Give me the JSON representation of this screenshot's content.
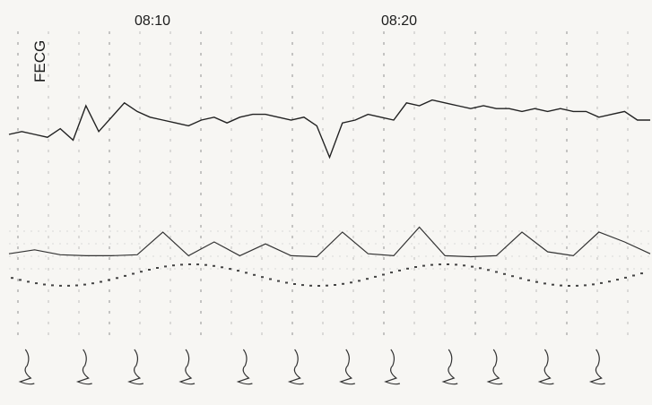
{
  "chart_data": {
    "type": "line",
    "label_side": "FECG",
    "time_labels": [
      "08:10",
      "08:20"
    ],
    "fhr_trace": {
      "x": [
        0,
        2,
        4,
        6,
        8,
        10,
        12,
        14,
        16,
        18,
        20,
        22,
        24,
        26,
        28,
        30,
        32,
        34,
        36,
        38,
        40,
        42,
        44,
        46,
        48,
        50,
        52,
        54,
        56,
        58,
        60,
        62,
        64,
        66,
        68,
        70,
        72,
        74,
        76,
        78,
        80,
        82,
        84,
        86,
        88,
        90,
        92,
        94,
        96,
        98,
        100
      ],
      "y": [
        140,
        141,
        140,
        139,
        142,
        138,
        150,
        141,
        146,
        151,
        148,
        146,
        145,
        144,
        143,
        145,
        146,
        144,
        146,
        147,
        147,
        146,
        145,
        146,
        143,
        132,
        144,
        145,
        147,
        146,
        145,
        151,
        150,
        152,
        151,
        150,
        149,
        150,
        149,
        149,
        148,
        149,
        148,
        149,
        148,
        148,
        146,
        147,
        148,
        145,
        145
      ]
    },
    "uterine_activity": {
      "x": [
        0,
        4,
        8,
        12,
        16,
        20,
        24,
        28,
        32,
        36,
        40,
        44,
        48,
        52,
        56,
        60,
        64,
        68,
        72,
        76,
        80,
        84,
        88,
        92,
        96,
        100
      ],
      "y": [
        8,
        12,
        7,
        6,
        6,
        7,
        30,
        6,
        20,
        6,
        18,
        6,
        5,
        30,
        8,
        6,
        35,
        6,
        5,
        6,
        30,
        10,
        6,
        30,
        20,
        8
      ]
    },
    "st_events": [
      {
        "x": 2
      },
      {
        "x": 11
      },
      {
        "x": 19
      },
      {
        "x": 27
      },
      {
        "x": 36
      },
      {
        "x": 44
      },
      {
        "x": 52
      },
      {
        "x": 59
      },
      {
        "x": 68
      },
      {
        "x": 75
      },
      {
        "x": 83
      },
      {
        "x": 91
      }
    ]
  }
}
